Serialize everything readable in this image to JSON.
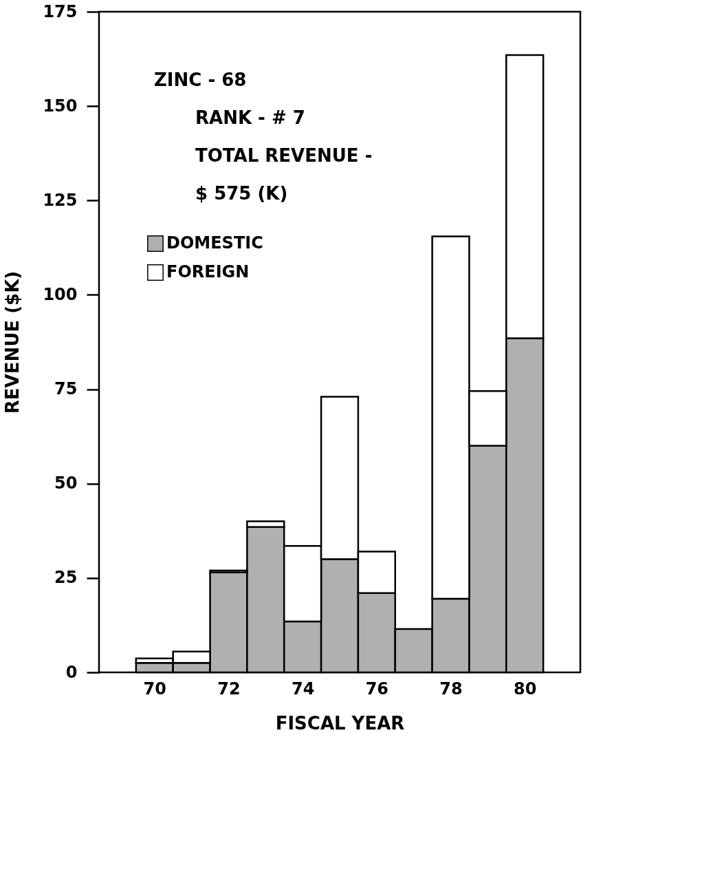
{
  "chart_data": {
    "type": "bar",
    "stacked": true,
    "x": [
      70,
      71,
      72,
      73,
      74,
      75,
      76,
      77,
      78,
      79,
      80
    ],
    "series": [
      {
        "name": "DOMESTIC",
        "color": "#b0b0b0",
        "values": [
          2.5,
          2.5,
          26.5,
          38.5,
          13.5,
          30,
          21,
          11.5,
          19.5,
          60,
          88.5
        ]
      },
      {
        "name": "FOREIGN",
        "color": "#ffffff",
        "values": [
          1.2,
          3,
          0.5,
          1.5,
          20,
          43,
          11,
          0,
          96,
          14.5,
          75
        ]
      }
    ],
    "xlim": [
      68.5,
      81.5
    ],
    "xticks": [
      70,
      72,
      74,
      76,
      78,
      80
    ],
    "ylim": [
      0,
      175
    ],
    "yticks": [
      0,
      25,
      50,
      75,
      100,
      125,
      150,
      175
    ],
    "xlabel": "FISCAL YEAR",
    "ylabel": "REVENUE ($K)",
    "annotations": [
      "ZINC - 68",
      "RANK - # 7",
      "TOTAL REVENUE -",
      "$ 575 (K)"
    ],
    "legend": "top left",
    "grid": false
  }
}
